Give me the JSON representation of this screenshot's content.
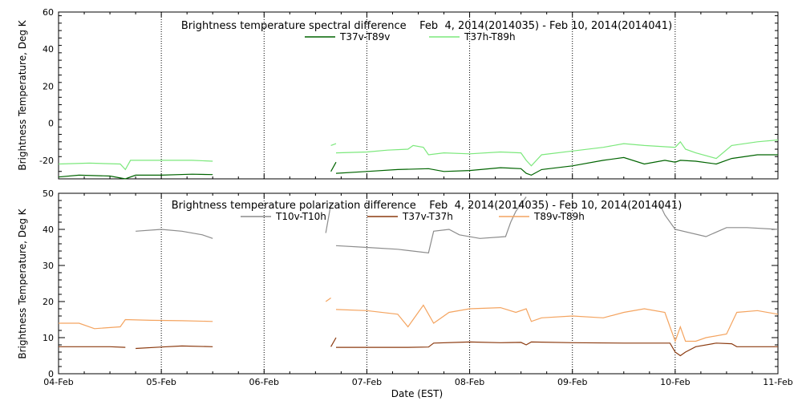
{
  "figure": {
    "xlabel": "Date (EST)",
    "ylabel_top": "Brightness Temperature, Deg K",
    "ylabel_bottom": "Brightness Temperature, Deg K"
  },
  "chart_data": [
    {
      "type": "line",
      "title": "Brightness temperature spectral difference    Feb  4, 2014(2014035) - Feb 10, 2014(2014041)",
      "ylabel": "Brightness Temperature, Deg K",
      "xlabel": "",
      "x_unit": "days since 04-Feb",
      "xlim": [
        0,
        7
      ],
      "ylim": [
        -30,
        60
      ],
      "yticks": [
        -20,
        0,
        20,
        40,
        60
      ],
      "ytick_labels": [
        "-20",
        "0",
        "20",
        "40",
        "60"
      ],
      "xticks": [
        0,
        1,
        2,
        3,
        4,
        5,
        6,
        7
      ],
      "xtick_labels": [
        "04-Feb",
        "05-Feb",
        "06-Feb",
        "07-Feb",
        "08-Feb",
        "09-Feb",
        "10-Feb",
        "11-Feb"
      ],
      "legend_position": "top-center",
      "series": [
        {
          "name": "T37v-T89v",
          "color": "#006400",
          "segments": [
            [
              [
                0,
                -29
              ],
              [
                0.2,
                -28
              ],
              [
                0.5,
                -28.5
              ],
              [
                0.65,
                -30
              ],
              [
                0.75,
                -28
              ],
              [
                1,
                -28
              ],
              [
                1.3,
                -27.5
              ],
              [
                1.5,
                -27.7
              ]
            ],
            [
              [
                2.65,
                -26
              ],
              [
                2.7,
                -21
              ]
            ],
            [
              [
                2.7,
                -27
              ],
              [
                3,
                -26
              ],
              [
                3.3,
                -25
              ],
              [
                3.6,
                -24.5
              ],
              [
                3.75,
                -26
              ],
              [
                4,
                -25.5
              ],
              [
                4.3,
                -24
              ],
              [
                4.5,
                -24.5
              ],
              [
                4.55,
                -27
              ],
              [
                4.6,
                -28
              ],
              [
                4.7,
                -25
              ],
              [
                5,
                -23
              ],
              [
                5.3,
                -20
              ],
              [
                5.5,
                -18.5
              ],
              [
                5.7,
                -22
              ],
              [
                5.9,
                -20
              ],
              [
                6,
                -21
              ],
              [
                6.05,
                -20
              ],
              [
                6.2,
                -20.5
              ],
              [
                6.4,
                -22
              ],
              [
                6.55,
                -19
              ],
              [
                6.8,
                -17
              ],
              [
                7,
                -17
              ]
            ]
          ]
        },
        {
          "name": "T37h-T89h",
          "color": "#7ce87c",
          "segments": [
            [
              [
                0,
                -22
              ],
              [
                0.3,
                -21.5
              ],
              [
                0.6,
                -22
              ],
              [
                0.65,
                -25
              ],
              [
                0.7,
                -20
              ],
              [
                1,
                -20
              ],
              [
                1.3,
                -20
              ],
              [
                1.5,
                -20.5
              ]
            ],
            [
              [
                2.65,
                -12
              ],
              [
                2.7,
                -11
              ]
            ],
            [
              [
                2.7,
                -16
              ],
              [
                3,
                -15.5
              ],
              [
                3.2,
                -14.5
              ],
              [
                3.4,
                -14
              ],
              [
                3.45,
                -12
              ],
              [
                3.55,
                -13
              ],
              [
                3.6,
                -17
              ],
              [
                3.75,
                -16
              ],
              [
                4,
                -16.5
              ],
              [
                4.3,
                -15.5
              ],
              [
                4.5,
                -16
              ],
              [
                4.55,
                -20
              ],
              [
                4.6,
                -23
              ],
              [
                4.7,
                -17
              ],
              [
                5,
                -15
              ],
              [
                5.3,
                -13
              ],
              [
                5.5,
                -11
              ],
              [
                5.7,
                -12
              ],
              [
                6,
                -13
              ],
              [
                6.05,
                -10
              ],
              [
                6.1,
                -14
              ],
              [
                6.2,
                -16
              ],
              [
                6.4,
                -19
              ],
              [
                6.55,
                -12
              ],
              [
                6.8,
                -10
              ],
              [
                7,
                -9
              ]
            ]
          ]
        }
      ]
    },
    {
      "type": "line",
      "title": "Brightness temperature polarization difference    Feb  4, 2014(2014035) - Feb 10, 2014(2014041)",
      "ylabel": "Brightness Temperature, Deg K",
      "xlabel": "Date (EST)",
      "x_unit": "days since 04-Feb",
      "xlim": [
        0,
        7
      ],
      "ylim": [
        0,
        50
      ],
      "yticks": [
        0,
        10,
        20,
        30,
        40,
        50
      ],
      "ytick_labels": [
        "0",
        "10",
        "20",
        "30",
        "40",
        "50"
      ],
      "xticks": [
        0,
        1,
        2,
        3,
        4,
        5,
        6,
        7
      ],
      "xtick_labels": [
        "04-Feb",
        "05-Feb",
        "06-Feb",
        "07-Feb",
        "08-Feb",
        "09-Feb",
        "10-Feb",
        "11-Feb"
      ],
      "legend_position": "top-center",
      "series": [
        {
          "name": "T10v-T10h",
          "color": "#8c8c8c",
          "segments": [
            [
              [
                0.75,
                39.5
              ],
              [
                1,
                40
              ],
              [
                1.2,
                39.5
              ],
              [
                1.4,
                38.5
              ],
              [
                1.5,
                37.5
              ]
            ],
            [
              [
                2.6,
                39
              ],
              [
                2.65,
                47
              ]
            ],
            [
              [
                2.7,
                35.5
              ],
              [
                3,
                35
              ],
              [
                3.3,
                34.5
              ],
              [
                3.6,
                33.5
              ],
              [
                3.65,
                39.5
              ],
              [
                3.8,
                40
              ],
              [
                3.9,
                38.5
              ],
              [
                4.1,
                37.5
              ],
              [
                4.35,
                38
              ],
              [
                4.4,
                42
              ],
              [
                4.45,
                45
              ],
              [
                4.55,
                49
              ]
            ],
            [
              [
                5.85,
                47
              ],
              [
                5.9,
                44
              ],
              [
                6,
                40
              ],
              [
                6.3,
                38
              ],
              [
                6.5,
                40.5
              ],
              [
                6.7,
                40.5
              ],
              [
                7,
                40
              ]
            ]
          ]
        },
        {
          "name": "T37v-T37h",
          "color": "#8b3a0f",
          "segments": [
            [
              [
                0,
                7.5
              ],
              [
                0.5,
                7.5
              ],
              [
                0.65,
                7.3
              ]
            ],
            [
              [
                0.75,
                7
              ],
              [
                1,
                7.4
              ],
              [
                1.2,
                7.7
              ],
              [
                1.5,
                7.5
              ]
            ],
            [
              [
                2.65,
                7.5
              ],
              [
                2.7,
                10
              ]
            ],
            [
              [
                2.7,
                7.3
              ],
              [
                3,
                7.3
              ],
              [
                3.4,
                7.3
              ],
              [
                3.6,
                7.4
              ],
              [
                3.65,
                8.5
              ],
              [
                4,
                8.8
              ],
              [
                4.3,
                8.6
              ],
              [
                4.5,
                8.7
              ],
              [
                4.55,
                8
              ],
              [
                4.6,
                8.8
              ],
              [
                5,
                8.6
              ],
              [
                5.5,
                8.5
              ],
              [
                5.95,
                8.5
              ],
              [
                6,
                6
              ],
              [
                6.05,
                5
              ],
              [
                6.1,
                6
              ],
              [
                6.2,
                7.5
              ],
              [
                6.4,
                8.5
              ],
              [
                6.55,
                8.3
              ],
              [
                6.6,
                7.5
              ],
              [
                7,
                7.5
              ]
            ]
          ]
        },
        {
          "name": "T89v-T89h",
          "color": "#f4a460",
          "segments": [
            [
              [
                0,
                14
              ],
              [
                0.2,
                14
              ],
              [
                0.35,
                12.5
              ],
              [
                0.6,
                13
              ],
              [
                0.65,
                15
              ],
              [
                0.9,
                14.8
              ],
              [
                1.2,
                14.7
              ],
              [
                1.5,
                14.5
              ]
            ],
            [
              [
                2.6,
                20
              ],
              [
                2.65,
                21
              ]
            ],
            [
              [
                2.7,
                17.8
              ],
              [
                3,
                17.5
              ],
              [
                3.3,
                16.5
              ],
              [
                3.4,
                13
              ],
              [
                3.5,
                17
              ],
              [
                3.55,
                19
              ],
              [
                3.65,
                14
              ],
              [
                3.8,
                17
              ],
              [
                4,
                18
              ],
              [
                4.3,
                18.3
              ],
              [
                4.45,
                17
              ],
              [
                4.55,
                18
              ],
              [
                4.6,
                14.5
              ],
              [
                4.7,
                15.5
              ],
              [
                5,
                16
              ],
              [
                5.3,
                15.5
              ],
              [
                5.5,
                17
              ],
              [
                5.7,
                18
              ],
              [
                5.9,
                17
              ],
              [
                5.95,
                13
              ],
              [
                6,
                9
              ],
              [
                6.05,
                13
              ],
              [
                6.1,
                9
              ],
              [
                6.2,
                9
              ],
              [
                6.3,
                10
              ],
              [
                6.5,
                11
              ],
              [
                6.6,
                17
              ],
              [
                6.8,
                17.5
              ],
              [
                7,
                16.5
              ]
            ]
          ]
        }
      ]
    }
  ]
}
